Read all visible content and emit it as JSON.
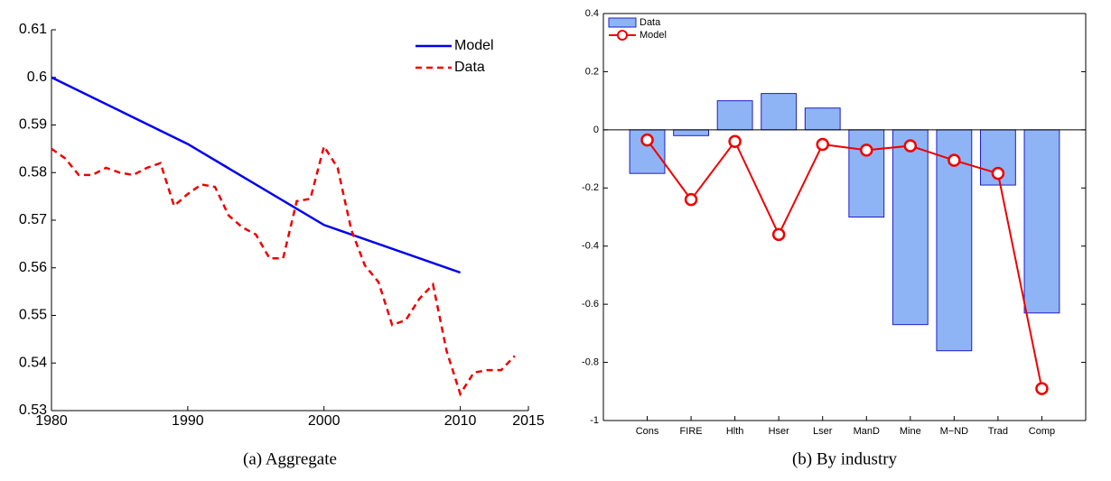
{
  "chart_data": [
    {
      "type": "line",
      "caption": "(a) Aggregate",
      "xlim": [
        1980,
        2015
      ],
      "xticks": [
        1980,
        1990,
        2000,
        2010,
        2015
      ],
      "ylim": [
        0.53,
        0.61
      ],
      "yticks": [
        0.53,
        0.54,
        0.55,
        0.56,
        0.57,
        0.58,
        0.59,
        0.6,
        0.61
      ],
      "legend": "upper right",
      "box": false,
      "series": [
        {
          "name": "Model",
          "color": "#0000ee",
          "dash": false,
          "x": [
            1980,
            1990,
            2000,
            2010
          ],
          "values": [
            0.6,
            0.586,
            0.569,
            0.559
          ]
        },
        {
          "name": "Data",
          "color": "#ee0000",
          "dash": true,
          "x": [
            1980,
            1981,
            1982,
            1983,
            1984,
            1985,
            1986,
            1987,
            1988,
            1989,
            1990,
            1991,
            1992,
            1993,
            1994,
            1995,
            1996,
            1997,
            1998,
            1999,
            2000,
            2001,
            2002,
            2003,
            2004,
            2005,
            2006,
            2007,
            2008,
            2009,
            2010,
            2011,
            2012,
            2013,
            2014
          ],
          "values": [
            0.585,
            0.583,
            0.5795,
            0.5795,
            0.581,
            0.58,
            0.5795,
            0.581,
            0.582,
            0.573,
            0.5755,
            0.5775,
            0.577,
            0.571,
            0.5685,
            0.567,
            0.562,
            0.562,
            0.574,
            0.5745,
            0.5855,
            0.581,
            0.568,
            0.5605,
            0.557,
            0.548,
            0.549,
            0.5535,
            0.5565,
            0.5425,
            0.5335,
            0.538,
            0.5385,
            0.5385,
            0.5415
          ]
        }
      ]
    },
    {
      "type": "bar",
      "caption": "(b) By industry",
      "categories": [
        "Cons",
        "FIRE",
        "Hlth",
        "Hser",
        "Lser",
        "ManD",
        "Mine",
        "M−ND",
        "Trad",
        "Comp"
      ],
      "ylim": [
        -1,
        0.4
      ],
      "yticks": [
        -1,
        -0.8,
        -0.6,
        -0.4,
        -0.2,
        0,
        0.2,
        0.4
      ],
      "legend": "upper left",
      "box": true,
      "series": [
        {
          "name": "Data",
          "type": "bar",
          "color": "#8fb4f5",
          "edge": "#1f1fc8",
          "values": [
            -0.15,
            -0.02,
            0.1,
            0.125,
            0.075,
            -0.3,
            -0.67,
            -0.76,
            -0.19,
            -0.63
          ]
        },
        {
          "name": "Model",
          "type": "line",
          "color": "#ee0000",
          "values": [
            -0.035,
            -0.24,
            -0.04,
            -0.36,
            -0.05,
            -0.07,
            -0.055,
            -0.105,
            -0.15,
            -0.89
          ]
        }
      ]
    }
  ]
}
